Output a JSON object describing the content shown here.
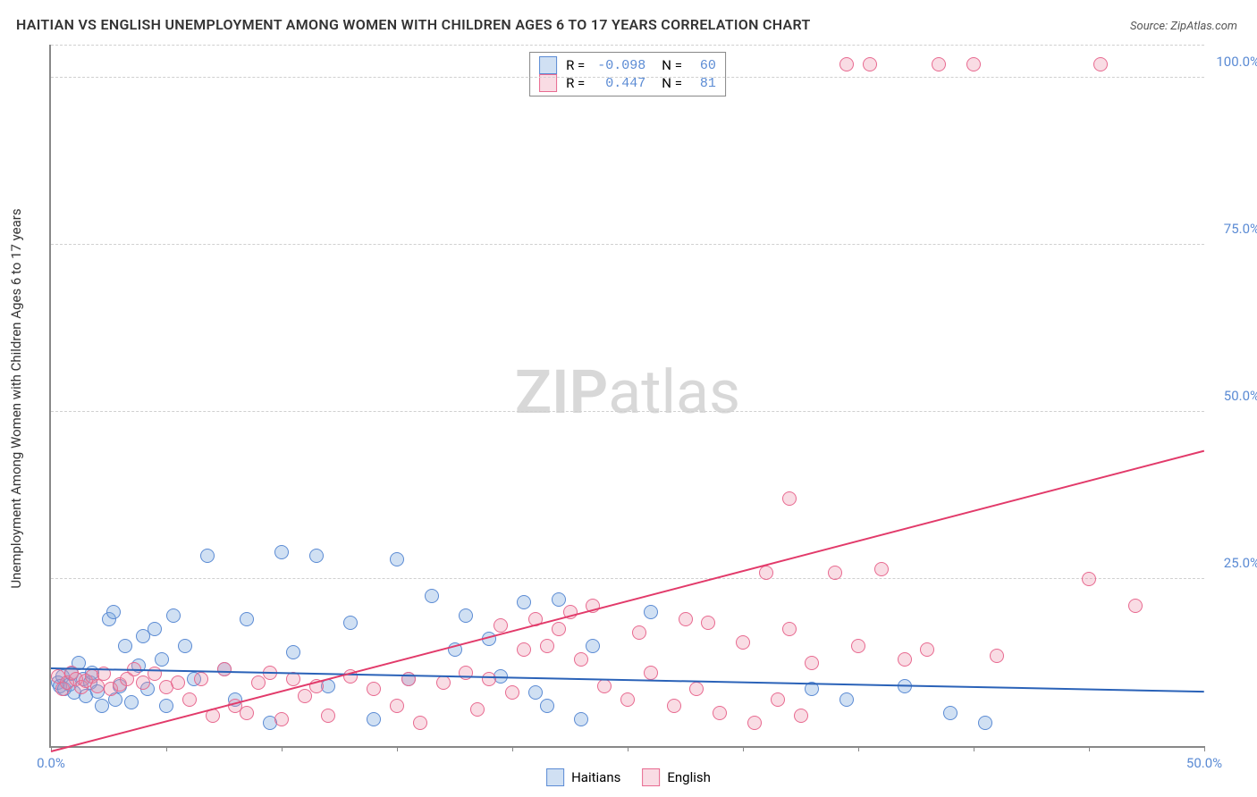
{
  "title": "HAITIAN VS ENGLISH UNEMPLOYMENT AMONG WOMEN WITH CHILDREN AGES 6 TO 17 YEARS CORRELATION CHART",
  "source": "Source: ZipAtlas.com",
  "watermark_a": "ZIP",
  "watermark_b": "atlas",
  "ylabel": "Unemployment Among Women with Children Ages 6 to 17 years",
  "chart": {
    "type": "scatter",
    "background_color": "#ffffff",
    "grid_color": "#d0d0d0",
    "axis_color": "#888888",
    "tick_label_color": "#5b8bd4",
    "xlim": [
      0,
      50
    ],
    "ylim": [
      0,
      105
    ],
    "xticks": [
      0,
      5,
      10,
      15,
      20,
      25,
      30,
      35,
      40,
      45,
      50
    ],
    "xtick_labels": {
      "0": "0.0%",
      "50": "50.0%"
    },
    "yticks": [
      25,
      50,
      75,
      100
    ],
    "ytick_labels": {
      "25": "25.0%",
      "50": "50.0%",
      "75": "75.0%",
      "100": "100.0%"
    },
    "marker_radius": 7,
    "marker_stroke_width": 1.2,
    "line_width": 2,
    "series": [
      {
        "name": "Haitians",
        "fill_color": "rgba(120,165,220,0.35)",
        "stroke_color": "#5b8bd4",
        "line_color": "#2a62b8",
        "R": "-0.098",
        "N": "60",
        "regression": {
          "x1": 0,
          "y1": 11.5,
          "x2": 50,
          "y2": 8.0
        },
        "points": [
          [
            0.3,
            9.5
          ],
          [
            0.4,
            9.0
          ],
          [
            0.5,
            10.5
          ],
          [
            0.6,
            8.5
          ],
          [
            0.8,
            9.2
          ],
          [
            0.9,
            10.8
          ],
          [
            1.0,
            8.0
          ],
          [
            1.2,
            12.5
          ],
          [
            1.4,
            10.0
          ],
          [
            1.5,
            7.5
          ],
          [
            1.7,
            9.5
          ],
          [
            1.8,
            11.0
          ],
          [
            2.0,
            8.2
          ],
          [
            2.2,
            6.0
          ],
          [
            2.5,
            19.0
          ],
          [
            2.7,
            20.0
          ],
          [
            2.8,
            7.0
          ],
          [
            3.0,
            9.0
          ],
          [
            3.2,
            15.0
          ],
          [
            3.5,
            6.5
          ],
          [
            3.8,
            12.0
          ],
          [
            4.0,
            16.5
          ],
          [
            4.2,
            8.5
          ],
          [
            4.5,
            17.5
          ],
          [
            4.8,
            13.0
          ],
          [
            5.0,
            6.0
          ],
          [
            5.3,
            19.5
          ],
          [
            5.8,
            15.0
          ],
          [
            6.2,
            10.0
          ],
          [
            6.8,
            28.5
          ],
          [
            7.5,
            11.5
          ],
          [
            8.0,
            7.0
          ],
          [
            8.5,
            19.0
          ],
          [
            9.5,
            3.5
          ],
          [
            10.0,
            29.0
          ],
          [
            10.5,
            14.0
          ],
          [
            11.5,
            28.5
          ],
          [
            12.0,
            9.0
          ],
          [
            13.0,
            18.5
          ],
          [
            14.0,
            4.0
          ],
          [
            15.0,
            28.0
          ],
          [
            15.5,
            10.0
          ],
          [
            16.5,
            22.5
          ],
          [
            17.5,
            14.5
          ],
          [
            18.0,
            19.5
          ],
          [
            19.0,
            16.0
          ],
          [
            19.5,
            10.5
          ],
          [
            20.5,
            21.5
          ],
          [
            21.0,
            8.0
          ],
          [
            21.5,
            6.0
          ],
          [
            22.0,
            22.0
          ],
          [
            23.0,
            4.0
          ],
          [
            23.5,
            15.0
          ],
          [
            26.0,
            20.0
          ],
          [
            33.0,
            8.5
          ],
          [
            34.5,
            7.0
          ],
          [
            37.0,
            9.0
          ],
          [
            39.0,
            5.0
          ],
          [
            40.5,
            3.5
          ]
        ]
      },
      {
        "name": "English",
        "fill_color": "rgba(235,140,165,0.30)",
        "stroke_color": "#e86a90",
        "line_color": "#e23a6a",
        "R": "0.447",
        "N": "81",
        "regression": {
          "x1": 0,
          "y1": -1.0,
          "x2": 50,
          "y2": 44.0
        },
        "points": [
          [
            0.3,
            10.5
          ],
          [
            0.5,
            8.5
          ],
          [
            0.7,
            9.5
          ],
          [
            0.9,
            11.0
          ],
          [
            1.1,
            10.0
          ],
          [
            1.3,
            8.8
          ],
          [
            1.5,
            9.7
          ],
          [
            1.8,
            10.5
          ],
          [
            2.0,
            9.0
          ],
          [
            2.3,
            10.8
          ],
          [
            2.6,
            8.5
          ],
          [
            3.0,
            9.2
          ],
          [
            3.3,
            10.0
          ],
          [
            3.6,
            11.5
          ],
          [
            4.0,
            9.5
          ],
          [
            4.5,
            10.8
          ],
          [
            5.0,
            8.8
          ],
          [
            5.5,
            9.5
          ],
          [
            6.0,
            7.0
          ],
          [
            6.5,
            10.0
          ],
          [
            7.0,
            4.5
          ],
          [
            7.5,
            11.5
          ],
          [
            8.0,
            6.0
          ],
          [
            8.5,
            5.0
          ],
          [
            9.0,
            9.5
          ],
          [
            9.5,
            11.0
          ],
          [
            10.0,
            4.0
          ],
          [
            10.5,
            10.0
          ],
          [
            11.0,
            7.5
          ],
          [
            11.5,
            9.0
          ],
          [
            12.0,
            4.5
          ],
          [
            13.0,
            10.5
          ],
          [
            14.0,
            8.5
          ],
          [
            15.0,
            6.0
          ],
          [
            15.5,
            10.0
          ],
          [
            16.0,
            3.5
          ],
          [
            17.0,
            9.5
          ],
          [
            18.0,
            11.0
          ],
          [
            18.5,
            5.5
          ],
          [
            19.0,
            10.0
          ],
          [
            19.5,
            18.0
          ],
          [
            20.0,
            8.0
          ],
          [
            20.5,
            14.5
          ],
          [
            21.0,
            19.0
          ],
          [
            21.5,
            15.0
          ],
          [
            22.0,
            17.5
          ],
          [
            22.5,
            20.0
          ],
          [
            23.0,
            13.0
          ],
          [
            23.5,
            21.0
          ],
          [
            24.0,
            9.0
          ],
          [
            25.0,
            7.0
          ],
          [
            25.5,
            17.0
          ],
          [
            26.0,
            11.0
          ],
          [
            27.0,
            6.0
          ],
          [
            27.5,
            19.0
          ],
          [
            28.0,
            8.5
          ],
          [
            28.5,
            18.5
          ],
          [
            29.0,
            5.0
          ],
          [
            30.0,
            15.5
          ],
          [
            30.5,
            3.5
          ],
          [
            31.0,
            26.0
          ],
          [
            31.5,
            7.0
          ],
          [
            32.0,
            17.5
          ],
          [
            32.5,
            4.5
          ],
          [
            32.0,
            37.0
          ],
          [
            33.0,
            12.5
          ],
          [
            34.0,
            26.0
          ],
          [
            35.0,
            15.0
          ],
          [
            36.0,
            26.5
          ],
          [
            37.0,
            13.0
          ],
          [
            38.0,
            14.5
          ],
          [
            41.0,
            13.5
          ],
          [
            45.0,
            25.0
          ],
          [
            47.0,
            21.0
          ],
          [
            34.5,
            102.0
          ],
          [
            35.5,
            102.0
          ],
          [
            38.5,
            102.0
          ],
          [
            40.0,
            102.0
          ],
          [
            45.5,
            102.0
          ]
        ]
      }
    ],
    "legend": {
      "position": "bottom-center",
      "items": [
        "Haitians",
        "English"
      ]
    },
    "stat_box": {
      "labels": {
        "R": "R =",
        "N": "N ="
      }
    }
  }
}
